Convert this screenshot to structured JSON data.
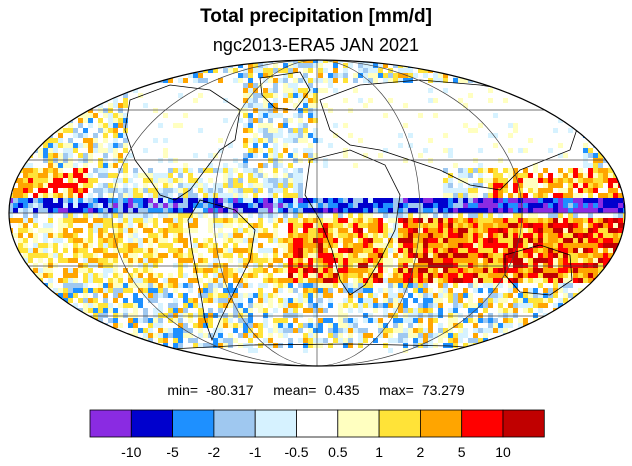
{
  "title": "Total precipitation [mm/d]",
  "subtitle": "ngc2013-ERA5 JAN 2021",
  "stats": {
    "min_label": "min=",
    "min_value": "-80.317",
    "mean_label": "mean=",
    "mean_value": "0.435",
    "max_label": "max=",
    "max_value": "73.279"
  },
  "projection": "Mollweide",
  "colorbar": {
    "colors": [
      "#8a2be2",
      "#0000cd",
      "#1e90ff",
      "#9fc8f0",
      "#d6f2ff",
      "#ffffff",
      "#ffffc0",
      "#ffe338",
      "#ffa500",
      "#ff0000",
      "#c00000"
    ],
    "tick_labels": [
      "-10",
      "-5",
      "-2",
      "-1",
      "-0.5",
      "0.5",
      "1",
      "2",
      "5",
      "10"
    ]
  }
}
